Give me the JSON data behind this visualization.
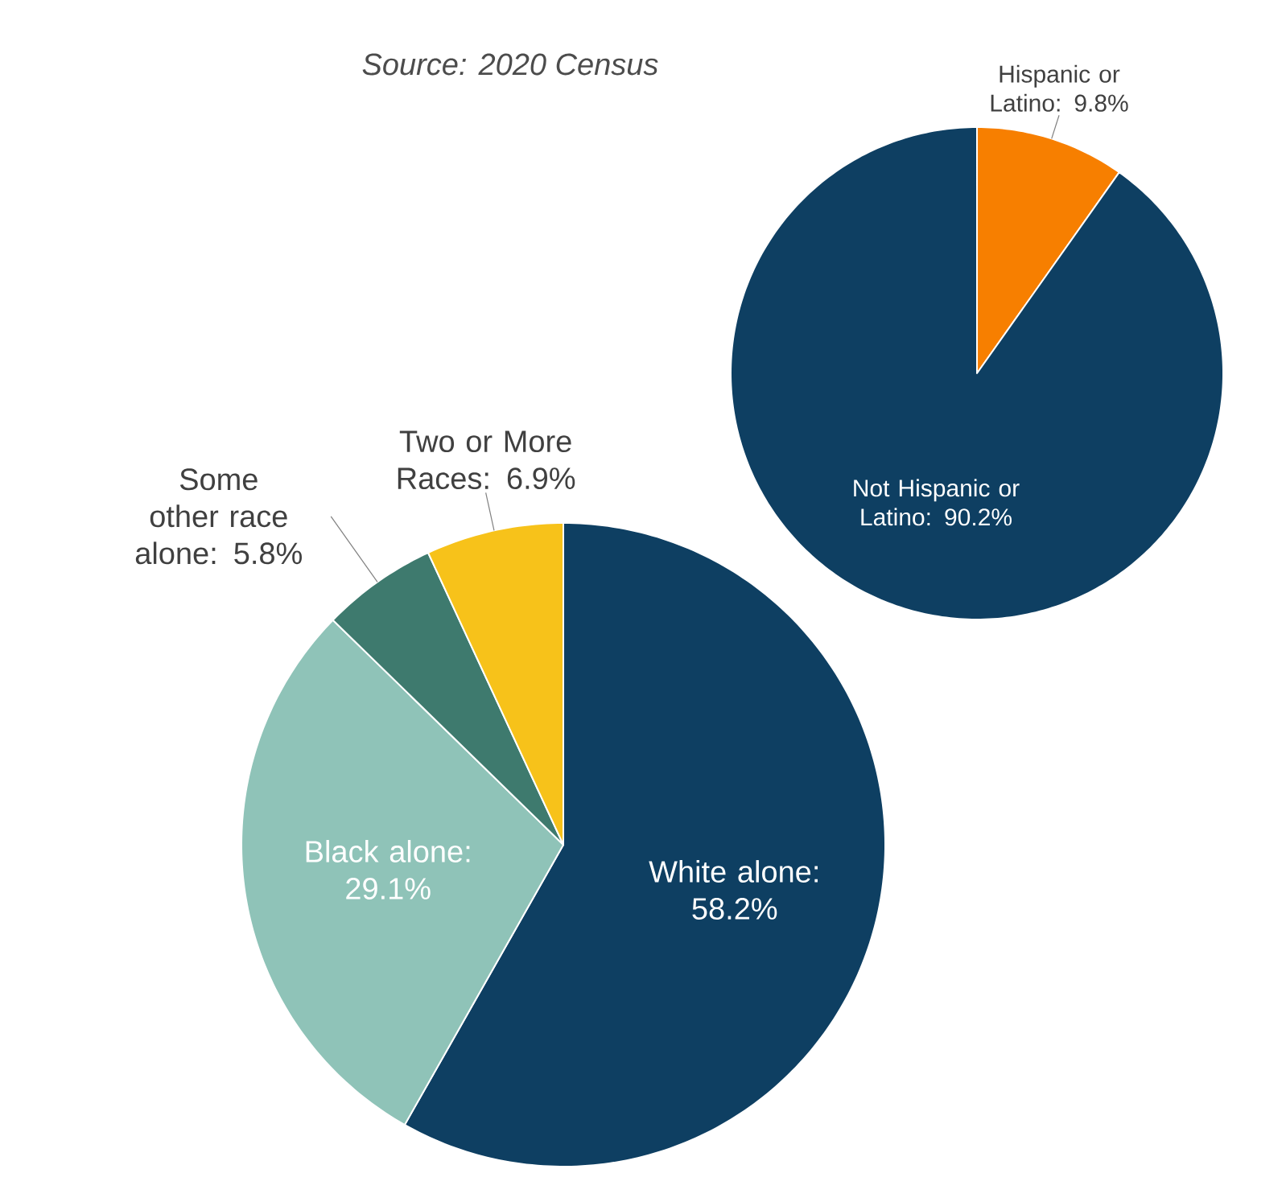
{
  "chart_data": [
    {
      "type": "pie",
      "categories": [
        "Hispanic or Latino",
        "Not Hispanic or Latino"
      ],
      "values": [
        9.8,
        90.2
      ],
      "value_labels": [
        ": 9.8%",
        ": 90.2%"
      ],
      "colors": [
        "#f77f00",
        "#0e3f62"
      ],
      "annotations": [
        "Source: 2020 Census"
      ]
    },
    {
      "type": "pie",
      "categories": [
        "White alone",
        "Black alone",
        "Some other race alone",
        "Two or More Races"
      ],
      "values": [
        58.2,
        29.1,
        5.8,
        6.9
      ],
      "value_labels": [
        ": 58.2%",
        ": 29.1%",
        ": 5.8%",
        ": 6.9%"
      ],
      "colors": [
        "#0e3f62",
        "#8fc3b8",
        "#3e7a6e",
        "#f7c21a"
      ]
    }
  ]
}
